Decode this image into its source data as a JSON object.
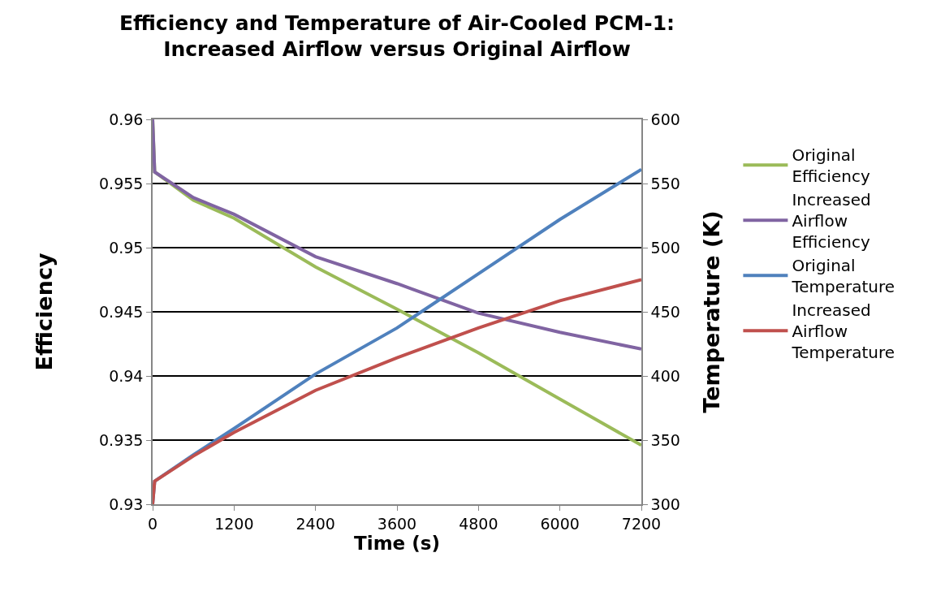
{
  "chart_data": {
    "type": "line",
    "title": "Efficiency and Temperature of Air-Cooled PCM-1:\nIncreased Airflow versus Original Airflow",
    "xlabel": "Time (s)",
    "ylabel": "Efficiency",
    "y2label": "Temperature (K)",
    "x": [
      0,
      30,
      600,
      1200,
      2400,
      3600,
      4800,
      6000,
      7200
    ],
    "series": [
      {
        "name": "Original Efficiency",
        "color": "#9bbb59",
        "values": [
          0.96,
          0.9559,
          0.9537,
          0.9523,
          0.9485,
          0.9452,
          0.9418,
          0.9382,
          0.9346
        ]
      },
      {
        "name": "Increased Airflow Efficiency",
        "color": "#8064a2",
        "values": [
          0.96,
          0.9559,
          0.9539,
          0.9526,
          0.9493,
          0.9472,
          0.9449,
          0.9434,
          0.9421
        ]
      },
      {
        "name": "Original Temperature",
        "color": "#4f81bd",
        "axis": "y2",
        "values": [
          300,
          318,
          338.5,
          359,
          401.5,
          437.4,
          479.7,
          522,
          561
        ]
      },
      {
        "name": "Increased Airflow Temperature",
        "color": "#c0504d",
        "axis": "y2",
        "values": [
          300,
          318,
          337.6,
          356,
          388.8,
          414.2,
          437.4,
          458.6,
          475.1
        ]
      }
    ],
    "xlim": [
      0,
      7200
    ],
    "xticks": [
      0,
      1200,
      2400,
      3600,
      4800,
      6000,
      7200
    ],
    "ylim": [
      0.93,
      0.96
    ],
    "yticks": [
      0.93,
      0.935,
      0.94,
      0.945,
      0.95,
      0.955,
      0.96
    ],
    "y2lim": [
      300,
      600
    ],
    "y2ticks": [
      300,
      350,
      400,
      450,
      500,
      550,
      600
    ],
    "grid": "y",
    "legend": "right",
    "marker": "none",
    "line_style": "solid"
  }
}
